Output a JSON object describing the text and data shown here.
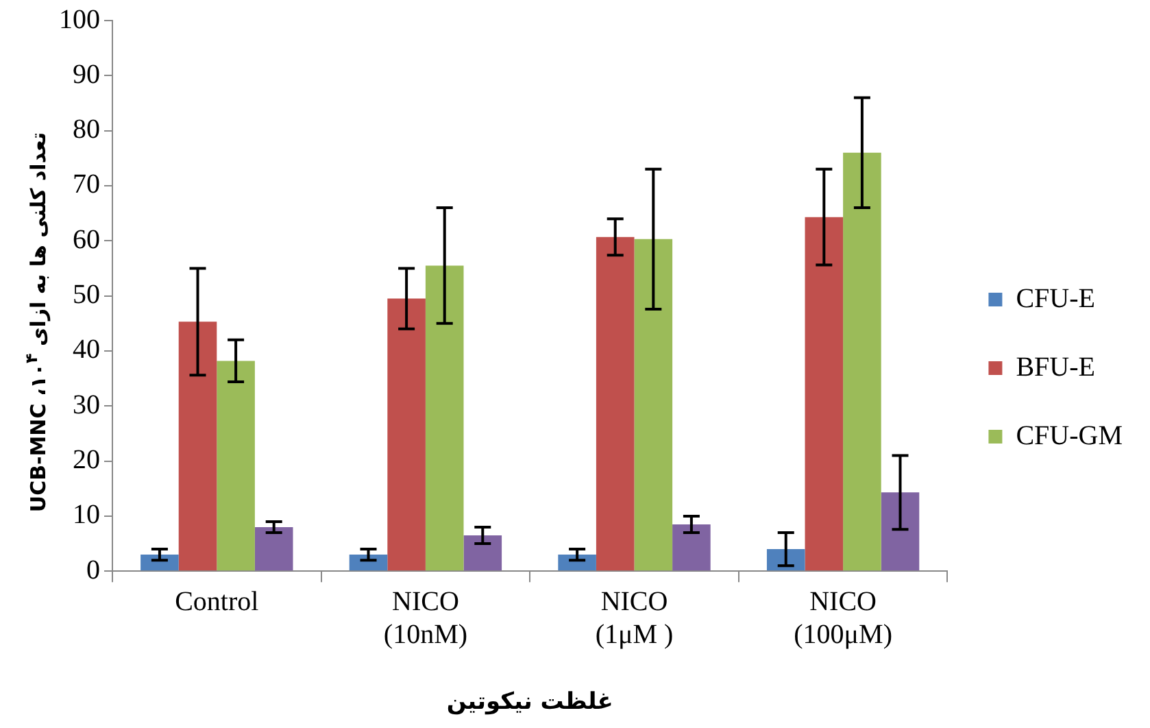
{
  "chart_data": {
    "type": "bar",
    "xlabel": "غلظت نیکوتین",
    "ylabel": "تعداد کلنی ها به ازای ۱۰$^{۴}$، UCB-MNC",
    "categories": [
      "Control",
      "NICO\n(10nM)",
      "NICO\n(1μM )",
      "NICO\n(100μM)"
    ],
    "series": [
      {
        "name": "CFU-E",
        "color": "#4f81bd",
        "values": [
          3,
          3,
          3,
          4
        ],
        "errors": [
          1,
          1,
          1,
          3
        ]
      },
      {
        "name": "BFU-E",
        "color": "#c0504d",
        "values": [
          45.3,
          49.5,
          60.7,
          64.3
        ],
        "errors": [
          9.7,
          5.5,
          3.3,
          8.7
        ]
      },
      {
        "name": "CFU-GM",
        "color": "#9bbb59",
        "values": [
          38.2,
          55.5,
          60.3,
          76
        ],
        "errors": [
          3.8,
          10.5,
          12.7,
          10
        ]
      },
      {
        "color": "#8064a2",
        "values": [
          8,
          6.5,
          8.5,
          14.3
        ],
        "errors": [
          1,
          1.5,
          1.5,
          6.7
        ]
      }
    ],
    "ylim": [
      0,
      100
    ],
    "yticks": [
      0,
      10,
      20,
      30,
      40,
      50,
      60,
      70,
      80,
      90,
      100
    ],
    "grid": false,
    "legend": "right"
  }
}
